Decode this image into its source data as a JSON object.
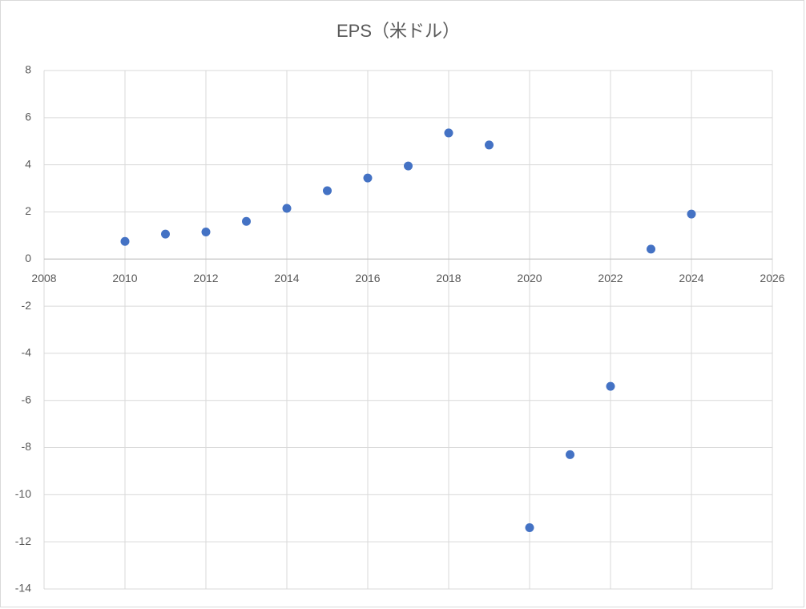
{
  "chart_data": {
    "type": "scatter",
    "title": "EPS（米ドル）",
    "x": [
      2010,
      2011,
      2012,
      2013,
      2014,
      2015,
      2016,
      2017,
      2018,
      2019,
      2020,
      2021,
      2022,
      2023,
      2024
    ],
    "series": [
      {
        "color": "#4472c4",
        "values": [
          0.75,
          1.06,
          1.15,
          1.6,
          2.15,
          2.9,
          3.44,
          3.95,
          5.35,
          4.84,
          -11.4,
          -8.3,
          -5.4,
          0.42,
          1.91
        ]
      }
    ],
    "xlim": [
      2008,
      2026
    ],
    "xticks": [
      2008,
      2010,
      2012,
      2014,
      2016,
      2018,
      2020,
      2022,
      2024,
      2026
    ],
    "ylim": [
      -14,
      8
    ],
    "yticks": [
      -14,
      -12,
      -10,
      -8,
      -6,
      -4,
      -2,
      0,
      2,
      4,
      6,
      8
    ],
    "grid": true
  }
}
